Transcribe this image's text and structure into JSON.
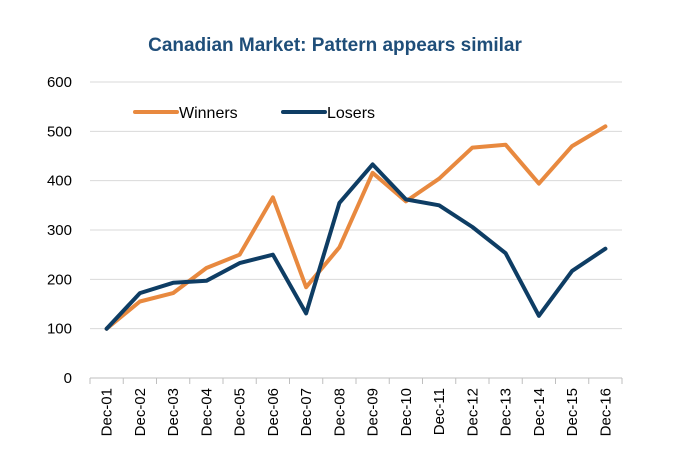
{
  "chart_data": {
    "type": "line",
    "title": "Canadian Market: Pattern appears similar",
    "xlabel": "",
    "ylabel": "",
    "categories": [
      "Dec-01",
      "Dec-02",
      "Dec-03",
      "Dec-04",
      "Dec-05",
      "Dec-06",
      "Dec-07",
      "Dec-08",
      "Dec-09",
      "Dec-10",
      "Dec-11",
      "Dec-12",
      "Dec-13",
      "Dec-14",
      "Dec-15",
      "Dec-16"
    ],
    "ylim": [
      0,
      600
    ],
    "yticks": [
      0,
      100,
      200,
      300,
      400,
      500,
      600
    ],
    "grid": true,
    "legend_position": "top-left",
    "series": [
      {
        "name": "Winners",
        "color": "#E8893F",
        "values": [
          100,
          155,
          172,
          223,
          250,
          366,
          184,
          265,
          416,
          358,
          404,
          467,
          473,
          394,
          470,
          510
        ]
      },
      {
        "name": "Losers",
        "color": "#0E3D64",
        "values": [
          100,
          172,
          193,
          197,
          233,
          250,
          131,
          355,
          433,
          362,
          350,
          306,
          253,
          126,
          217,
          262
        ]
      }
    ]
  },
  "colors": {
    "title": "#1F4E79",
    "grid": "#D9D9D9",
    "axis": "#BFBFBF"
  }
}
